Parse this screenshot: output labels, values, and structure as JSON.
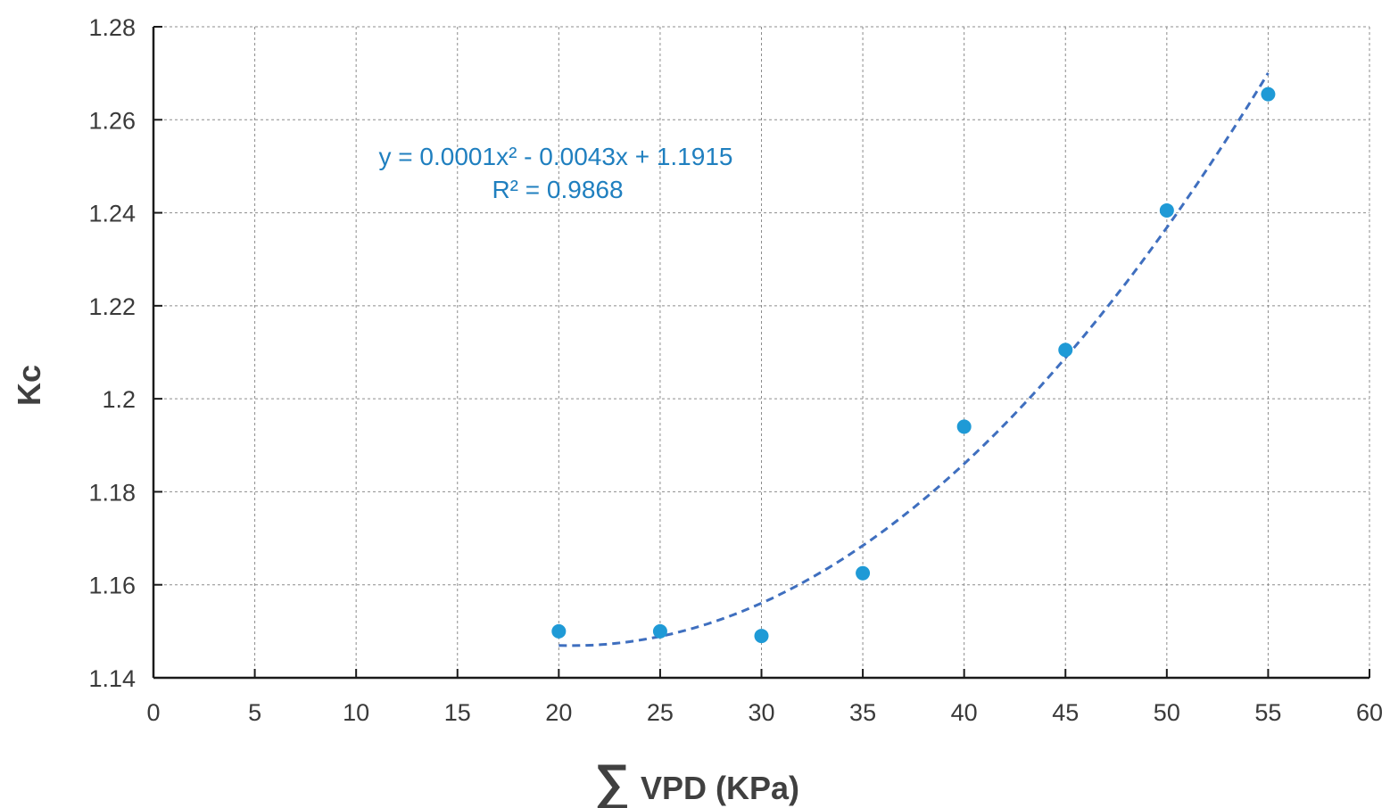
{
  "chart_data": {
    "type": "scatter",
    "title": "",
    "xlabel": "VPD (KPa)",
    "xlabel_symbol": "∑",
    "ylabel": "Kc",
    "xlim": [
      0,
      60
    ],
    "ylim": [
      1.14,
      1.28
    ],
    "xticks": [
      "0",
      "5",
      "10",
      "15",
      "20",
      "25",
      "30",
      "35",
      "40",
      "45",
      "50",
      "55",
      "60"
    ],
    "yticks": [
      "1.14",
      "1.16",
      "1.18",
      "1.2",
      "1.22",
      "1.24",
      "1.26",
      "1.28"
    ],
    "grid": true,
    "legend": "none",
    "series": [
      {
        "x": [
          20,
          25,
          30,
          35,
          40,
          45,
          50,
          55
        ],
        "y": [
          1.15,
          1.15,
          1.149,
          1.1625,
          1.194,
          1.2105,
          1.2405,
          1.2655
        ]
      }
    ],
    "trendline": {
      "type": "polynomial",
      "order": 2,
      "x_range": [
        20,
        55
      ],
      "style": "dashed",
      "equation": "y = 0.0001x² - 0.0043x + 1.1915",
      "r_squared": "R² = 0.9868"
    },
    "colors": {
      "points": "#1f9ad6",
      "trendline": "#3f6fbf",
      "equation_text": "#1f7fbf",
      "grid": "#8c8c8c",
      "axis": "#1a1a1a"
    }
  }
}
